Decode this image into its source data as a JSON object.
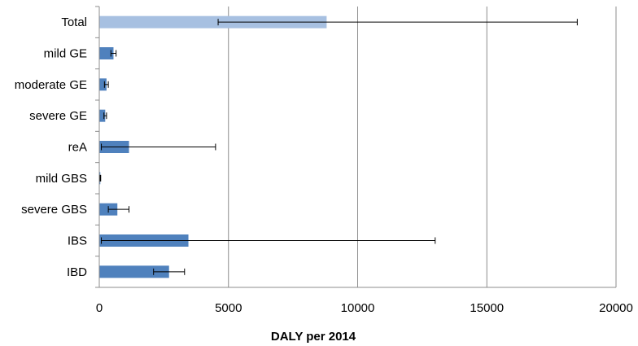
{
  "chart_data": {
    "type": "bar",
    "orientation": "horizontal",
    "title": "",
    "xlabel": "DALY per 2014",
    "ylabel": "",
    "xlim": [
      0,
      20000
    ],
    "xticks": [
      0,
      5000,
      10000,
      15000,
      20000
    ],
    "grid": "vertical-major",
    "legend": "none",
    "categories": [
      "Total",
      "mild GE",
      "moderate GE",
      "severe GE",
      "reA",
      "mild GBS",
      "severe GBS",
      "IBS",
      "IBD"
    ],
    "values": [
      8800,
      550,
      280,
      230,
      1150,
      40,
      700,
      3450,
      2700
    ],
    "error_low": [
      4600,
      450,
      200,
      180,
      80,
      30,
      350,
      80,
      2100
    ],
    "error_high": [
      18500,
      650,
      350,
      280,
      4500,
      55,
      1150,
      13000,
      3300
    ],
    "bar_colors": [
      "#a7c0e1",
      "#4f81bd",
      "#4f81bd",
      "#4f81bd",
      "#4f81bd",
      "#4f81bd",
      "#4f81bd",
      "#4f81bd",
      "#4f81bd"
    ]
  }
}
